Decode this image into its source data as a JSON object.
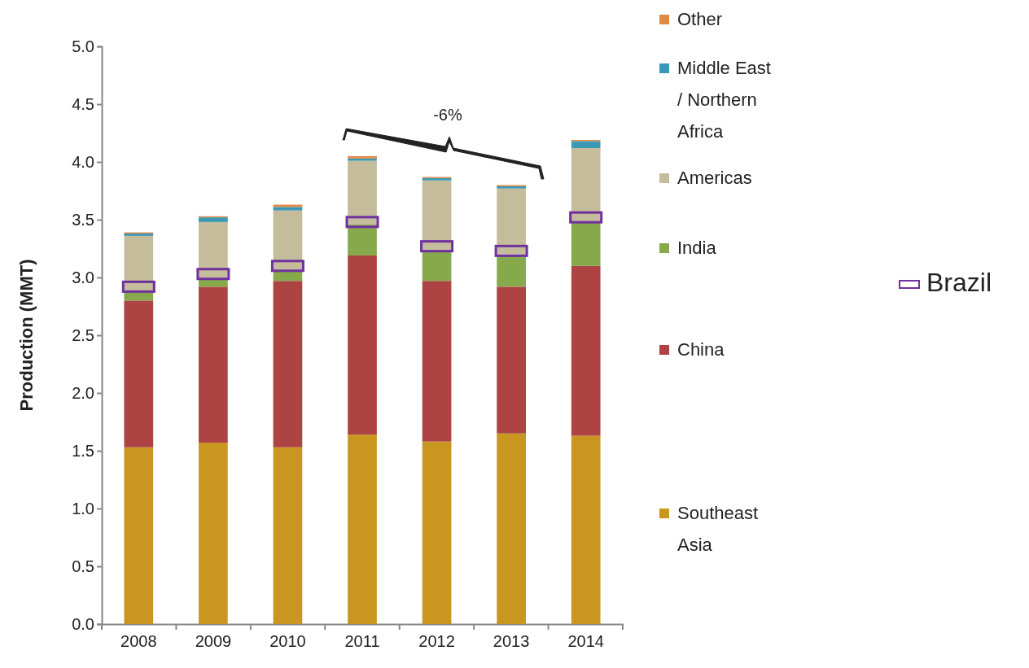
{
  "chart_data": {
    "type": "bar",
    "stacked": true,
    "ylabel": "Production (MMT)",
    "categories": [
      "2008",
      "2009",
      "2010",
      "2011",
      "2012",
      "2013",
      "2014"
    ],
    "ylim": [
      0,
      5
    ],
    "yticks": [
      {
        "value": 0,
        "label": "0.0"
      },
      {
        "value": 0.5,
        "label": "0.5"
      },
      {
        "value": 1,
        "label": "1.0"
      },
      {
        "value": 1.5,
        "label": "1.5"
      },
      {
        "value": 2,
        "label": "2.0"
      },
      {
        "value": 2.5,
        "label": "2.5"
      },
      {
        "value": 3,
        "label": "3.0"
      },
      {
        "value": 3.5,
        "label": "3.5"
      },
      {
        "value": 4,
        "label": "4.0"
      },
      {
        "value": 4.5,
        "label": "4.5"
      },
      {
        "value": 5,
        "label": "5.0"
      }
    ],
    "grid": false,
    "legend": "right",
    "series": [
      {
        "name": "Southeast Asia",
        "color": "#c9971f",
        "values": [
          1.53,
          1.57,
          1.53,
          1.64,
          1.58,
          1.65,
          1.63
        ]
      },
      {
        "name": "China",
        "color": "#ad4343",
        "values": [
          1.27,
          1.35,
          1.44,
          1.55,
          1.39,
          1.27,
          1.47
        ]
      },
      {
        "name": "India",
        "color": "#86a94b",
        "values": [
          0.09,
          0.07,
          0.09,
          0.27,
          0.27,
          0.28,
          0.38
        ]
      },
      {
        "name": "Americas",
        "color": "#c4bc9a",
        "values": [
          0.47,
          0.49,
          0.52,
          0.55,
          0.6,
          0.57,
          0.64
        ]
      },
      {
        "name": "Middle East / Northern Africa",
        "color": "#3a98b5",
        "values": [
          0.02,
          0.04,
          0.03,
          0.02,
          0.02,
          0.02,
          0.06
        ]
      },
      {
        "name": "Other",
        "color": "#e08a45",
        "values": [
          0.01,
          0.01,
          0.02,
          0.02,
          0.01,
          0.01,
          0.01
        ]
      },
      {
        "name": "Brazil",
        "type": "scatter",
        "marker": "square",
        "color": "#7030a0",
        "values": [
          2.92,
          3.03,
          3.1,
          3.48,
          3.27,
          3.23,
          3.52
        ]
      }
    ],
    "annotations": [
      "-6%"
    ]
  }
}
